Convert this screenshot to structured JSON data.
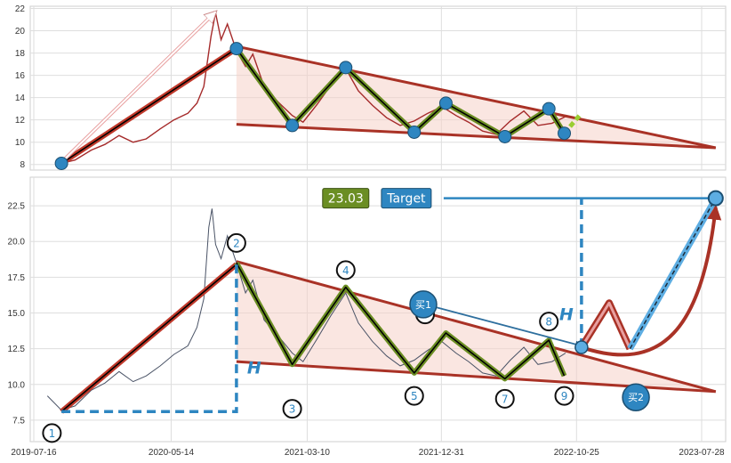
{
  "chart_data": [
    {
      "type": "line",
      "panel": "top",
      "ylim": [
        7.5,
        22.2
      ],
      "y_ticks": [
        "8",
        "10",
        "12",
        "14",
        "16",
        "18",
        "20",
        "22"
      ],
      "price_series": {
        "color": "#a52a2a",
        "points": [
          [
            "2019-09-15",
            8.1
          ],
          [
            "2019-10-15",
            8.4
          ],
          [
            "2019-11-20",
            9.3
          ],
          [
            "2019-12-20",
            9.8
          ],
          [
            "2020-01-20",
            10.6
          ],
          [
            "2020-02-20",
            10.0
          ],
          [
            "2020-03-20",
            10.3
          ],
          [
            "2020-04-20",
            11.2
          ],
          [
            "2020-05-20",
            12.0
          ],
          [
            "2020-06-20",
            12.6
          ],
          [
            "2020-07-10",
            13.5
          ],
          [
            "2020-07-25",
            15.0
          ],
          [
            "2020-08-10",
            19.5
          ],
          [
            "2020-08-20",
            21.6
          ],
          [
            "2020-09-01",
            19.2
          ],
          [
            "2020-09-15",
            20.6
          ],
          [
            "2020-10-05",
            18.2
          ],
          [
            "2020-10-25",
            16.8
          ],
          [
            "2020-11-10",
            17.9
          ],
          [
            "2020-12-05",
            15.0
          ],
          [
            "2021-01-05",
            13.6
          ],
          [
            "2021-02-05",
            12.4
          ],
          [
            "2021-03-01",
            11.8
          ],
          [
            "2021-04-01",
            13.4
          ],
          [
            "2021-05-01",
            15.1
          ],
          [
            "2021-06-03",
            16.6
          ],
          [
            "2021-07-01",
            14.6
          ],
          [
            "2021-08-01",
            13.3
          ],
          [
            "2021-09-01",
            12.2
          ],
          [
            "2021-10-01",
            11.5
          ],
          [
            "2021-11-01",
            11.9
          ],
          [
            "2021-12-01",
            12.6
          ],
          [
            "2022-01-01",
            13.2
          ],
          [
            "2022-02-01",
            12.4
          ],
          [
            "2022-03-01",
            11.8
          ],
          [
            "2022-04-01",
            11.0
          ],
          [
            "2022-05-01",
            10.7
          ],
          [
            "2022-06-01",
            11.9
          ],
          [
            "2022-07-01",
            12.8
          ],
          [
            "2022-08-01",
            11.5
          ],
          [
            "2022-09-01",
            11.7
          ],
          [
            "2022-10-01",
            12.3
          ]
        ]
      },
      "upper_trendline": [
        [
          "2020-10-05",
          18.6
        ],
        [
          "2023-08-28",
          9.5
        ]
      ],
      "lower_trendline": [
        [
          "2020-10-05",
          11.6
        ],
        [
          "2023-08-28",
          9.5
        ]
      ],
      "impulse_line": [
        [
          "2019-09-15",
          8.1
        ],
        [
          "2020-10-05",
          18.4
        ]
      ],
      "dashed_arrow": [
        [
          "2019-09-20",
          8.4
        ],
        [
          "2020-08-20",
          21.7
        ]
      ],
      "zigzag": [
        [
          "2020-10-05",
          18.4
        ],
        [
          "2021-02-05",
          11.5
        ],
        [
          "2021-06-03",
          16.7
        ],
        [
          "2021-11-01",
          10.9
        ],
        [
          "2022-01-10",
          13.5
        ],
        [
          "2022-05-20",
          10.5
        ],
        [
          "2022-08-25",
          13.0
        ],
        [
          "2022-09-28",
          10.8
        ]
      ],
      "projection": [
        [
          "2022-09-28",
          10.8
        ],
        [
          "2022-11-05",
          12.6
        ]
      ],
      "markers": [
        [
          "2019-09-15",
          8.1
        ],
        [
          "2020-10-05",
          18.4
        ],
        [
          "2021-02-05",
          11.5
        ],
        [
          "2021-06-03",
          16.7
        ],
        [
          "2021-11-01",
          10.9
        ],
        [
          "2022-01-10",
          13.5
        ],
        [
          "2022-05-20",
          10.5
        ],
        [
          "2022-08-25",
          13.0
        ],
        [
          "2022-09-28",
          10.8
        ]
      ]
    },
    {
      "type": "line",
      "panel": "bottom",
      "ylim": [
        6.0,
        24.5
      ],
      "y_ticks": [
        "7.5",
        "10.0",
        "12.5",
        "15.0",
        "17.5",
        "20.0",
        "22.5"
      ],
      "x_ticks": [
        "2019-07-16",
        "2020-05-14",
        "2021-03-10",
        "2021-12-31",
        "2022-10-25",
        "2023-07-28"
      ],
      "price_series": {
        "color": "#4a5366",
        "points": [
          [
            "2019-08-15",
            9.2
          ],
          [
            "2019-09-15",
            8.2
          ],
          [
            "2019-10-15",
            8.5
          ],
          [
            "2019-11-20",
            9.6
          ],
          [
            "2019-12-20",
            10.1
          ],
          [
            "2020-01-20",
            10.9
          ],
          [
            "2020-02-20",
            10.2
          ],
          [
            "2020-03-20",
            10.6
          ],
          [
            "2020-04-20",
            11.3
          ],
          [
            "2020-05-20",
            12.1
          ],
          [
            "2020-06-20",
            12.7
          ],
          [
            "2020-07-10",
            14.0
          ],
          [
            "2020-07-25",
            16.0
          ],
          [
            "2020-08-05",
            21.0
          ],
          [
            "2020-08-12",
            22.3
          ],
          [
            "2020-08-20",
            19.8
          ],
          [
            "2020-09-01",
            18.8
          ],
          [
            "2020-09-15",
            20.4
          ],
          [
            "2020-10-05",
            18.5
          ],
          [
            "2020-10-25",
            16.4
          ],
          [
            "2020-11-10",
            17.3
          ],
          [
            "2020-12-05",
            14.5
          ],
          [
            "2021-01-05",
            13.4
          ],
          [
            "2021-02-05",
            12.2
          ],
          [
            "2021-03-01",
            11.6
          ],
          [
            "2021-04-01",
            13.2
          ],
          [
            "2021-05-01",
            14.8
          ],
          [
            "2021-06-03",
            16.4
          ],
          [
            "2021-07-01",
            14.3
          ],
          [
            "2021-08-01",
            13.0
          ],
          [
            "2021-09-01",
            12.0
          ],
          [
            "2021-10-01",
            11.3
          ],
          [
            "2021-11-01",
            11.7
          ],
          [
            "2021-12-01",
            12.4
          ],
          [
            "2022-01-01",
            13.0
          ],
          [
            "2022-02-01",
            12.2
          ],
          [
            "2022-03-01",
            11.6
          ],
          [
            "2022-04-01",
            10.8
          ],
          [
            "2022-05-01",
            10.6
          ],
          [
            "2022-06-01",
            11.7
          ],
          [
            "2022-07-01",
            12.6
          ],
          [
            "2022-08-01",
            11.4
          ],
          [
            "2022-09-01",
            11.6
          ],
          [
            "2022-10-01",
            12.2
          ]
        ]
      },
      "upper_trendline": [
        [
          "2020-10-05",
          18.6
        ],
        [
          "2023-08-28",
          9.5
        ]
      ],
      "lower_trendline": [
        [
          "2020-10-05",
          11.6
        ],
        [
          "2023-08-28",
          9.5
        ]
      ],
      "impulse_line": [
        [
          "2019-09-15",
          8.1
        ],
        [
          "2020-10-05",
          18.4
        ]
      ],
      "zigzag": [
        [
          "2020-10-05",
          18.5
        ],
        [
          "2021-02-05",
          11.4
        ],
        [
          "2021-06-03",
          16.8
        ],
        [
          "2021-11-01",
          10.8
        ],
        [
          "2022-01-10",
          13.6
        ],
        [
          "2022-05-20",
          10.4
        ],
        [
          "2022-08-25",
          13.1
        ],
        [
          "2022-09-28",
          10.6
        ]
      ],
      "h_leg1": [
        [
          "2019-09-15",
          8.1
        ],
        [
          "2020-10-05",
          8.1
        ],
        [
          "2020-10-05",
          18.4
        ]
      ],
      "h_leg2": [
        [
          "2022-11-05",
          12.6
        ],
        [
          "2022-11-05",
          23.0
        ]
      ],
      "target_line": [
        [
          "2022-01-05",
          23.03
        ],
        [
          "2023-08-28",
          23.03
        ]
      ],
      "breakout_zigzag": [
        [
          "2022-11-05",
          12.6
        ],
        [
          "2023-01-05",
          15.7
        ],
        [
          "2023-02-20",
          12.5
        ]
      ],
      "dashed_target_path": [
        [
          "2023-02-20",
          12.5
        ],
        [
          "2023-08-28",
          23.03
        ]
      ],
      "curved_arrow": [
        [
          "2022-11-05",
          12.6
        ],
        [
          "2023-08-28",
          22.4
        ]
      ],
      "buy_arrow": [
        [
          "2021-11-25",
          15.6
        ],
        [
          "2022-11-05",
          12.7
        ]
      ],
      "target_point": [
        "2023-08-28",
        23.03
      ],
      "breakout_point": [
        "2022-11-05",
        12.6
      ],
      "labels": [
        "1",
        "2",
        "3",
        "4",
        "5",
        "6",
        "7",
        "8",
        "9"
      ],
      "label_points": [
        [
          "2019-08-25",
          6.6
        ],
        [
          "2020-10-05",
          19.9
        ],
        [
          "2021-02-05",
          8.3
        ],
        [
          "2021-06-03",
          18.0
        ],
        [
          "2021-11-01",
          9.2
        ],
        [
          "2021-11-25",
          14.9
        ],
        [
          "2022-05-20",
          9.0
        ],
        [
          "2022-08-25",
          14.4
        ],
        [
          "2022-09-28",
          9.2
        ]
      ],
      "h_label": "H",
      "target_value": "23.03",
      "target_label": "Target",
      "buy1_label": "买1",
      "buy2_label": "买2"
    }
  ]
}
